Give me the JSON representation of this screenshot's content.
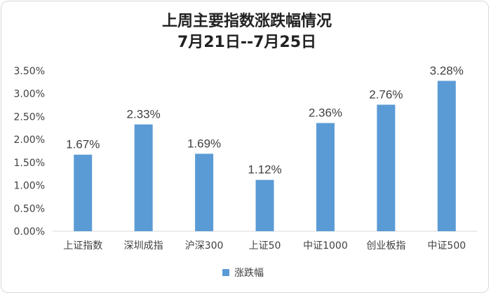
{
  "chart_data": {
    "type": "bar",
    "title": "上周主要指数涨跌幅情况",
    "subtitle": "7月21日--7月25日",
    "categories": [
      "上证指数",
      "深圳成指",
      "沪深300",
      "上证50",
      "中证1000",
      "创业板指",
      "中证500"
    ],
    "series": [
      {
        "name": "涨跌幅",
        "values": [
          1.67,
          2.33,
          1.69,
          1.12,
          2.36,
          2.76,
          3.28
        ],
        "color": "#5b9bd5"
      }
    ],
    "data_labels": [
      "1.67%",
      "2.33%",
      "1.69%",
      "1.12%",
      "2.36%",
      "2.76%",
      "3.28%"
    ],
    "y_ticks": [
      "0.00%",
      "0.50%",
      "1.00%",
      "1.50%",
      "2.00%",
      "2.50%",
      "3.00%",
      "3.50%"
    ],
    "ylim": [
      0,
      3.5
    ],
    "grid": false,
    "legend_position": "bottom"
  }
}
